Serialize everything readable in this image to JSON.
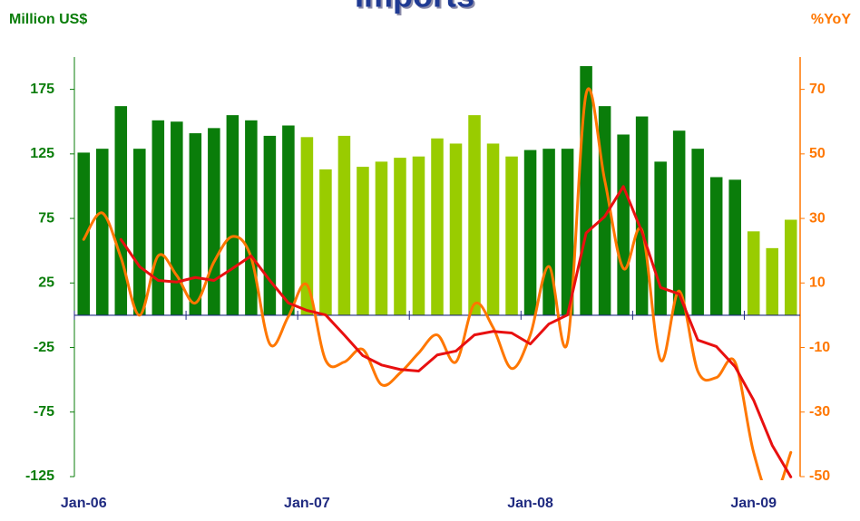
{
  "chart_data": {
    "type": "bar-line",
    "title": "Imports",
    "y_axis_label": "Million US$",
    "y2_axis_label": "%YoY",
    "categories": [
      "Jan-06",
      null,
      null,
      null,
      null,
      null,
      null,
      null,
      null,
      null,
      null,
      null,
      "Jan-07",
      null,
      null,
      null,
      null,
      null,
      null,
      null,
      null,
      null,
      null,
      null,
      "Jan-08",
      null,
      null,
      null,
      null,
      null,
      null,
      null,
      null,
      null,
      null,
      null,
      "Jan-09",
      null,
      null
    ],
    "ylim": [
      -125,
      200
    ],
    "yticks": [
      -125,
      -75,
      -25,
      25,
      75,
      125,
      175
    ],
    "y2lim": [
      -50,
      80
    ],
    "y2ticks": [
      -50,
      -30,
      -10,
      10,
      30,
      50,
      70
    ],
    "series": [
      {
        "type": "bar",
        "axis": "y",
        "colors": [
          "#0a7d0a",
          "#0a7d0a",
          "#0a7d0a",
          "#0a7d0a",
          "#0a7d0a",
          "#0a7d0a",
          "#0a7d0a",
          "#0a7d0a",
          "#0a7d0a",
          "#0a7d0a",
          "#0a7d0a",
          "#0a7d0a",
          "#99cc00",
          "#99cc00",
          "#99cc00",
          "#99cc00",
          "#99cc00",
          "#99cc00",
          "#99cc00",
          "#99cc00",
          "#99cc00",
          "#99cc00",
          "#99cc00",
          "#99cc00",
          "#0a7d0a",
          "#0a7d0a",
          "#0a7d0a",
          "#0a7d0a",
          "#0a7d0a",
          "#0a7d0a",
          "#0a7d0a",
          "#0a7d0a",
          "#0a7d0a",
          "#0a7d0a",
          "#0a7d0a",
          "#0a7d0a",
          "#99cc00",
          "#99cc00",
          "#99cc00"
        ],
        "values": [
          126,
          129,
          162,
          129,
          151,
          150,
          141,
          145,
          155,
          151,
          139,
          147,
          138,
          113,
          139,
          115,
          119,
          122,
          123,
          137,
          133,
          155,
          133,
          123,
          128,
          129,
          129,
          193,
          162,
          140,
          154,
          119,
          143,
          129,
          107,
          105,
          65,
          52,
          74
        ]
      },
      {
        "type": "line",
        "axis": "y2",
        "color": "#ff7700",
        "smooth": true,
        "values": [
          23.5,
          31.7,
          17.9,
          0,
          18.4,
          12.3,
          3.8,
          16.5,
          24.4,
          17.9,
          -8.9,
          -0.4,
          9.4,
          -13.9,
          -14.5,
          -10.6,
          -21.5,
          -17.9,
          -11.7,
          -6.1,
          -14.5,
          3.5,
          -3.8,
          -16.5,
          -6.1,
          15.1,
          -8.3,
          68.6,
          41.8,
          14.5,
          26.3,
          -13.9,
          7.5,
          -17.3,
          -19.3,
          -14.5,
          -42.5,
          -57,
          -42.5
        ]
      },
      {
        "type": "line",
        "axis": "y2",
        "color": "#e81010",
        "smooth": false,
        "values": [
          null,
          null,
          23.5,
          15.1,
          10.8,
          10.3,
          11.7,
          10.8,
          14.5,
          18.4,
          10.8,
          3.8,
          1.5,
          0.1,
          -6.1,
          -12.5,
          -15.4,
          -16.8,
          -17.3,
          -12.3,
          -11.1,
          -6.1,
          -5.0,
          -5.5,
          -8.9,
          -2.7,
          0.1,
          25.5,
          30.6,
          39.9,
          25.8,
          8.6,
          6.6,
          -7.7,
          -9.7,
          -15.9,
          -26.3,
          -40.3,
          -50.1
        ]
      }
    ]
  }
}
